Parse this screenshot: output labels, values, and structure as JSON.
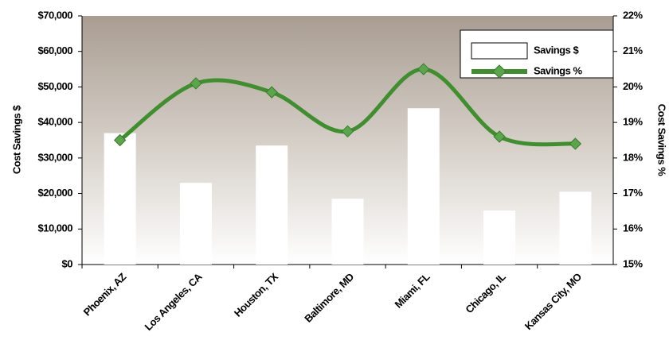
{
  "chart_data": {
    "type": "bar_line",
    "categories": [
      "Phoenix, AZ",
      "Los Angeles, CA",
      "Houston, TX",
      "Baltimore, MD",
      "Miami, FL",
      "Chicago, IL",
      "Kansas City, MO"
    ],
    "series": [
      {
        "name": "Savings $",
        "color": "#ffffff",
        "type": "bar",
        "values": [
          37000,
          23000,
          33500,
          18500,
          44000,
          15200,
          20500
        ]
      },
      {
        "name": "Savings %",
        "color": "#3f8f2f",
        "type": "line",
        "axis": "y2",
        "values": [
          18.5,
          20.1,
          19.85,
          18.75,
          20.5,
          18.6,
          18.4
        ]
      }
    ],
    "y_label": "Cost Savings $",
    "y2_label": "Cost Savings %",
    "ylim": [
      0,
      70000
    ],
    "yticks": [
      {
        "value": 0,
        "label": "$0"
      },
      {
        "value": 10000,
        "label": "$10,000"
      },
      {
        "value": 20000,
        "label": "$20,000"
      },
      {
        "value": 30000,
        "label": "$30,000"
      },
      {
        "value": 40000,
        "label": "$40,000"
      },
      {
        "value": 50000,
        "label": "$50,000"
      },
      {
        "value": 60000,
        "label": "$60,000"
      },
      {
        "value": 70000,
        "label": "$70,000"
      }
    ],
    "y2lim": [
      15,
      22
    ],
    "y2ticks": [
      {
        "value": 15,
        "label": "15%"
      },
      {
        "value": 16,
        "label": "16%"
      },
      {
        "value": 17,
        "label": "17%"
      },
      {
        "value": 18,
        "label": "18%"
      },
      {
        "value": 19,
        "label": "19%"
      },
      {
        "value": 20,
        "label": "20%"
      },
      {
        "value": 21,
        "label": "21%"
      },
      {
        "value": 22,
        "label": "22%"
      }
    ],
    "legend": "upper right"
  }
}
